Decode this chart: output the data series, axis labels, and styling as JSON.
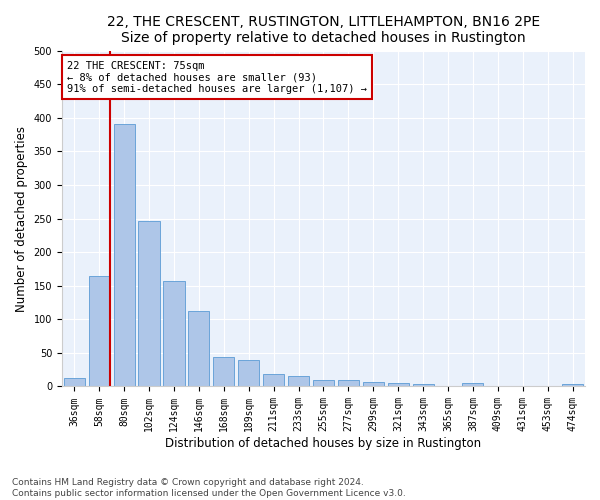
{
  "title": "22, THE CRESCENT, RUSTINGTON, LITTLEHAMPTON, BN16 2PE",
  "subtitle": "Size of property relative to detached houses in Rustington",
  "xlabel": "Distribution of detached houses by size in Rustington",
  "ylabel": "Number of detached properties",
  "categories": [
    "36sqm",
    "58sqm",
    "80sqm",
    "102sqm",
    "124sqm",
    "146sqm",
    "168sqm",
    "189sqm",
    "211sqm",
    "233sqm",
    "255sqm",
    "277sqm",
    "299sqm",
    "321sqm",
    "343sqm",
    "365sqm",
    "387sqm",
    "409sqm",
    "431sqm",
    "453sqm",
    "474sqm"
  ],
  "values": [
    12,
    165,
    390,
    247,
    157,
    113,
    44,
    39,
    18,
    15,
    10,
    9,
    6,
    5,
    3,
    0,
    5,
    0,
    0,
    0,
    4
  ],
  "bar_color": "#aec6e8",
  "bar_edge_color": "#5b9bd5",
  "annotation_line0": "22 THE CRESCENT: 75sqm",
  "annotation_line1": "← 8% of detached houses are smaller (93)",
  "annotation_line2": "91% of semi-detached houses are larger (1,107) →",
  "annotation_box_color": "#ffffff",
  "annotation_box_edge_color": "#cc0000",
  "vline_color": "#cc0000",
  "footer_line1": "Contains HM Land Registry data © Crown copyright and database right 2024.",
  "footer_line2": "Contains public sector information licensed under the Open Government Licence v3.0.",
  "ylim": [
    0,
    500
  ],
  "yticks": [
    0,
    50,
    100,
    150,
    200,
    250,
    300,
    350,
    400,
    450,
    500
  ],
  "bg_color": "#eaf1fb",
  "fig_bg_color": "#ffffff",
  "title_fontsize": 10,
  "xlabel_fontsize": 8.5,
  "ylabel_fontsize": 8.5,
  "tick_fontsize": 7,
  "annotation_fontsize": 7.5,
  "footer_fontsize": 6.5,
  "vline_index": 1.77
}
